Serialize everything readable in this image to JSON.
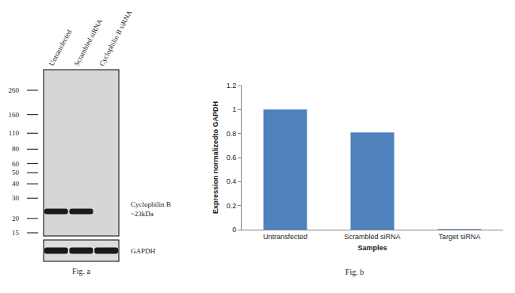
{
  "blot": {
    "lanes": [
      "Untransfected",
      "Scrambled siRNA",
      "Cyclophilin B siRNA"
    ],
    "markers": [
      260,
      160,
      110,
      80,
      60,
      50,
      40,
      30,
      20,
      15
    ],
    "target": {
      "label": "Cyclophilin B",
      "size_label": "~23kDa",
      "kda": 23,
      "present": [
        true,
        true,
        false
      ]
    },
    "loading_control": {
      "label": "GAPDH",
      "present": [
        true,
        true,
        true
      ]
    },
    "caption": "Fig. a"
  },
  "chart_data": {
    "type": "bar",
    "categories": [
      "Untransfected",
      "Scrambled siRNA",
      "Target siRNA"
    ],
    "values": [
      1,
      0.81,
      0.005
    ],
    "color": "#4f81bd",
    "x_label": "Samples",
    "y_label": "Expression normalizedto GAPDH",
    "ylim": [
      0,
      1.2
    ],
    "yticks": [
      0,
      0.2,
      0.4,
      0.6,
      0.8,
      1,
      1.2
    ],
    "grid": false
  },
  "chart_caption": "Fig. b"
}
